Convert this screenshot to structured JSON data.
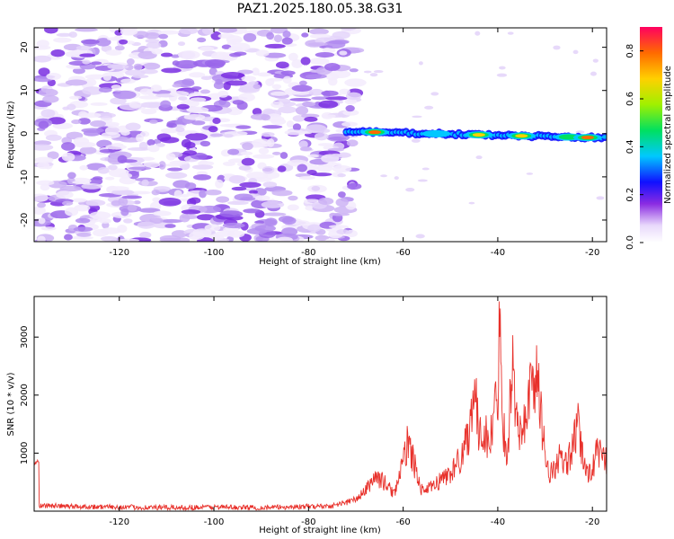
{
  "title": "PAZ1.2025.180.05.38.G31",
  "colors": {
    "snr_line": "#e8302a",
    "axis": "#000000"
  },
  "chart_data": [
    {
      "type": "heatmap",
      "xlabel": "Height of straight line (km)",
      "ylabel": "Frequency (Hz)",
      "xlim": [
        -138,
        -17
      ],
      "ylim": [
        -25,
        24.5
      ],
      "xticks": [
        -120,
        -100,
        -80,
        -60,
        -40,
        -20
      ],
      "yticks": [
        -20,
        -10,
        0,
        10,
        20
      ],
      "colorbar": {
        "label": "Normalized spectral amplitude",
        "range": [
          0,
          0.9
        ],
        "ticks": [
          0.0,
          0.2,
          0.4,
          0.6,
          0.8
        ],
        "colormap": "rainbow"
      },
      "features": {
        "noise_region_x": [
          -137,
          -70
        ],
        "noise_level": 0.1,
        "signal_x": [
          -72,
          -17
        ],
        "signal_frequency_hz": [
          0.5,
          -1
        ],
        "signal_peaks": [
          {
            "x": -66,
            "amp": 0.9
          },
          {
            "x": -53,
            "amp": 0.5
          },
          {
            "x": -44,
            "amp": 0.8
          },
          {
            "x": -35,
            "amp": 0.8
          },
          {
            "x": -25,
            "amp": 0.6
          },
          {
            "x": -21,
            "amp": 0.9
          }
        ]
      }
    },
    {
      "type": "line",
      "xlabel": "Height of straight line (km)",
      "ylabel": "SNR (10 * v/v)",
      "xlim": [
        -138,
        -17
      ],
      "ylim": [
        0,
        3700
      ],
      "xticks": [
        -120,
        -100,
        -80,
        -60,
        -40,
        -20
      ],
      "yticks": [
        1000,
        2000,
        3000
      ],
      "x": [
        -137,
        -130,
        -120,
        -110,
        -100,
        -90,
        -80,
        -75,
        -70,
        -68,
        -66,
        -64,
        -62,
        -60,
        -59,
        -58,
        -56,
        -54,
        -52,
        -50,
        -48,
        -46,
        -45,
        -44,
        -43,
        -42,
        -41,
        -40,
        -39.5,
        -39,
        -38,
        -37,
        -36,
        -35,
        -34,
        -33,
        -32,
        -31,
        -30,
        -29,
        -28,
        -27,
        -26,
        -25,
        -24,
        -23,
        -22,
        -21,
        -20,
        -19,
        -18,
        -17
      ],
      "y": [
        100,
        80,
        70,
        60,
        70,
        60,
        80,
        90,
        200,
        350,
        600,
        500,
        300,
        800,
        1250,
        900,
        350,
        400,
        550,
        650,
        900,
        1400,
        2300,
        1200,
        1500,
        1100,
        1500,
        2100,
        3650,
        1600,
        900,
        2600,
        1600,
        1200,
        1800,
        2100,
        2400,
        1800,
        1000,
        650,
        700,
        950,
        750,
        900,
        1150,
        1450,
        900,
        650,
        750,
        1000,
        950,
        850
      ]
    }
  ]
}
